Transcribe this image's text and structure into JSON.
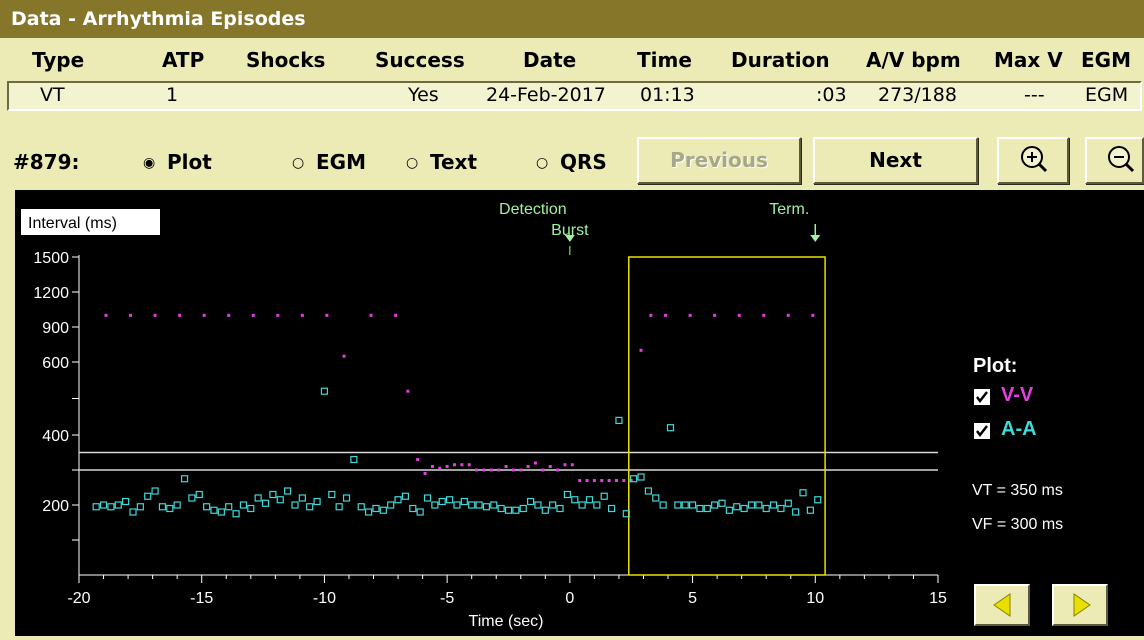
{
  "window": {
    "title": "Data - Arrhythmia Episodes"
  },
  "table": {
    "headers": [
      "Type",
      "ATP",
      "Shocks",
      "Success",
      "Date",
      "Time",
      "Duration",
      "A/V bpm",
      "Max V",
      "EGM"
    ],
    "row": {
      "type": "VT",
      "atp": "1",
      "shocks": "",
      "success": "Yes",
      "date": "24-Feb-2017",
      "time": "01:13",
      "duration": ":03",
      "av_bpm": "273/188",
      "max_v": "---",
      "egm": "EGM"
    }
  },
  "controls": {
    "episode_label": "#879:",
    "radios": [
      {
        "label": "Plot",
        "selected": true
      },
      {
        "label": "EGM",
        "selected": false
      },
      {
        "label": "Text",
        "selected": false
      },
      {
        "label": "QRS",
        "selected": false
      }
    ],
    "previous_label": "Previous",
    "previous_enabled": false,
    "next_label": "Next",
    "zoom_in_icon": "zoom-in-icon",
    "zoom_out_icon": "zoom-out-icon"
  },
  "legend": {
    "title": "Plot:",
    "items": [
      {
        "label": "V-V",
        "checked": true,
        "color": "#e040e0"
      },
      {
        "label": "A-A",
        "checked": true,
        "color": "#40d8d8"
      }
    ],
    "vt_text": "VT = 350 ms",
    "vf_text": "VF = 300 ms"
  },
  "nav": {
    "left_icon": "triangle-left-icon",
    "right_icon": "triangle-right-icon"
  },
  "chart_data": {
    "type": "scatter",
    "ylabel": "Interval (ms)",
    "xlabel": "Time (sec)",
    "xlim": [
      -20,
      15
    ],
    "xticks": [
      -20,
      -15,
      -10,
      -5,
      0,
      5,
      10,
      15
    ],
    "yticks": [
      200,
      400,
      600,
      900,
      1200,
      1500
    ],
    "y_scale": "nonlinear (log-like), 1500 at top",
    "thresholds": [
      350,
      300
    ],
    "annotations": [
      {
        "text": "Detection",
        "x": 0
      },
      {
        "text": "Burst",
        "x": 0
      },
      {
        "text": "Term.",
        "x": 10
      }
    ],
    "highlight_range": {
      "x_start": 2.4,
      "x_end": 10.4,
      "color": "#e8e000"
    },
    "series": [
      {
        "name": "V-V",
        "color": "#e040e0",
        "marker": "dot",
        "x": [
          -18.9,
          -17.9,
          -16.9,
          -15.9,
          -14.9,
          -13.9,
          -12.9,
          -11.9,
          -10.9,
          -9.9,
          -9.2,
          -8.1,
          -7.1,
          -6.6,
          -6.2,
          -5.9,
          -5.6,
          -5.3,
          -5.0,
          -4.7,
          -4.4,
          -4.1,
          -3.8,
          -3.5,
          -3.2,
          -2.9,
          -2.6,
          -2.3,
          -2.0,
          -1.7,
          -1.4,
          -1.1,
          -0.8,
          -0.5,
          -0.2,
          0.1,
          0.4,
          0.7,
          1.0,
          1.3,
          1.6,
          1.9,
          2.2,
          2.5,
          2.9,
          3.3,
          3.9,
          4.9,
          5.9,
          6.9,
          7.9,
          8.9,
          9.9
        ],
        "y": [
          1000,
          1000,
          1000,
          1000,
          1000,
          1000,
          1000,
          1000,
          1000,
          1000,
          650,
          1000,
          1000,
          520,
          330,
          290,
          310,
          305,
          310,
          315,
          315,
          315,
          300,
          300,
          300,
          300,
          310,
          300,
          300,
          310,
          320,
          300,
          310,
          300,
          315,
          315,
          270,
          270,
          270,
          270,
          270,
          270,
          270,
          270,
          700,
          1000,
          1000,
          1000,
          1000,
          1000,
          1000,
          1000,
          1000
        ]
      },
      {
        "name": "A-A",
        "color": "#40d8d8",
        "marker": "square",
        "x": [
          -19.3,
          -19.0,
          -18.7,
          -18.4,
          -18.1,
          -17.8,
          -17.5,
          -17.2,
          -16.9,
          -16.6,
          -16.3,
          -16.0,
          -15.7,
          -15.4,
          -15.1,
          -14.8,
          -14.5,
          -14.2,
          -13.9,
          -13.6,
          -13.3,
          -13.0,
          -12.7,
          -12.4,
          -12.1,
          -11.8,
          -11.5,
          -11.2,
          -10.9,
          -10.6,
          -10.3,
          -10.0,
          -9.7,
          -9.4,
          -9.1,
          -8.8,
          -8.5,
          -8.2,
          -7.9,
          -7.6,
          -7.3,
          -7.0,
          -6.7,
          -6.4,
          -6.1,
          -5.8,
          -5.5,
          -5.2,
          -4.9,
          -4.6,
          -4.3,
          -4.0,
          -3.7,
          -3.4,
          -3.1,
          -2.8,
          -2.5,
          -2.2,
          -1.9,
          -1.6,
          -1.3,
          -1.0,
          -0.7,
          -0.4,
          -0.1,
          0.2,
          0.5,
          0.8,
          1.1,
          1.4,
          1.7,
          2.0,
          2.3,
          2.6,
          2.9,
          3.2,
          3.5,
          3.8,
          4.1,
          4.4,
          4.7,
          5.0,
          5.3,
          5.6,
          5.9,
          6.2,
          6.5,
          6.8,
          7.1,
          7.4,
          7.7,
          8.0,
          8.3,
          8.6,
          8.9,
          9.2,
          9.5,
          9.8,
          10.1
        ],
        "y": [
          195,
          200,
          195,
          200,
          210,
          180,
          195,
          225,
          240,
          195,
          190,
          200,
          275,
          220,
          230,
          195,
          185,
          180,
          195,
          175,
          200,
          190,
          220,
          205,
          230,
          215,
          240,
          200,
          220,
          195,
          210,
          520,
          230,
          195,
          220,
          330,
          195,
          180,
          190,
          185,
          200,
          215,
          225,
          190,
          180,
          220,
          200,
          210,
          215,
          200,
          210,
          200,
          200,
          195,
          200,
          190,
          185,
          185,
          190,
          210,
          200,
          185,
          200,
          190,
          230,
          215,
          200,
          215,
          200,
          225,
          190,
          440,
          175,
          275,
          280,
          240,
          220,
          200,
          420,
          200,
          200,
          200,
          190,
          190,
          200,
          205,
          185,
          195,
          190,
          200,
          200,
          190,
          200,
          190,
          205,
          180,
          235,
          185,
          215
        ]
      }
    ]
  }
}
